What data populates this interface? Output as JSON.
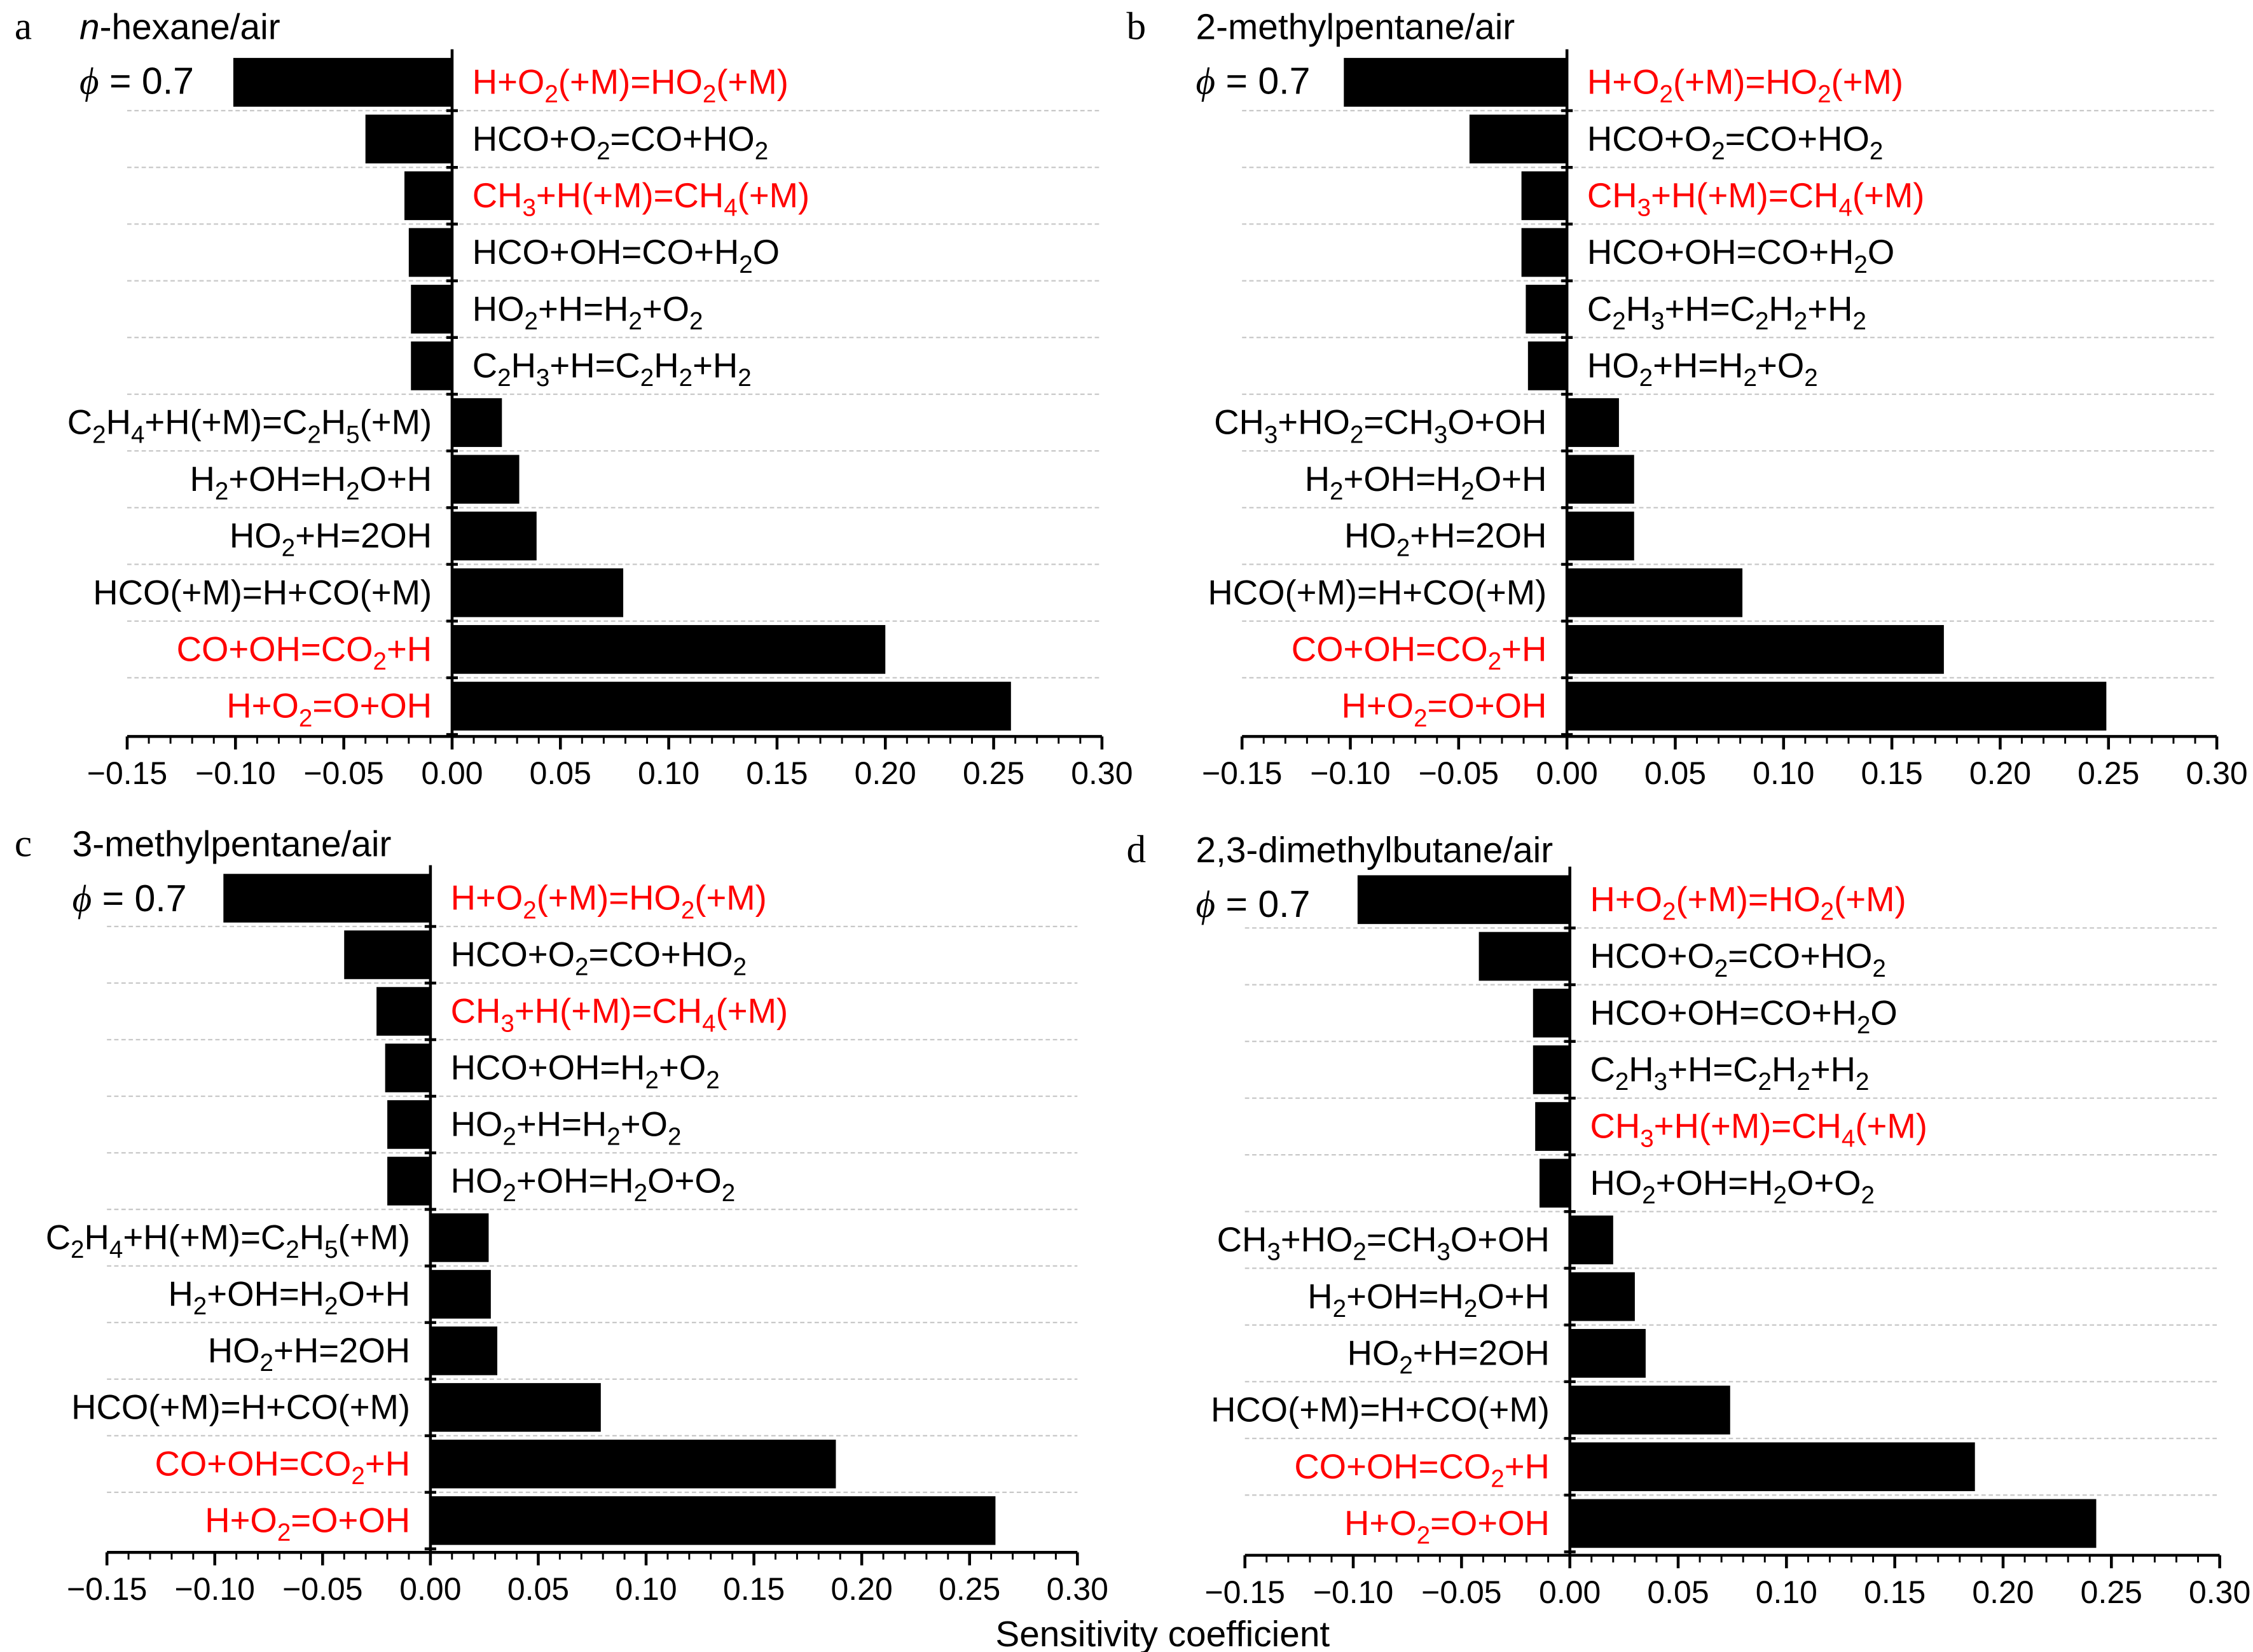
{
  "chart_data": [
    {
      "type": "bar",
      "orientation": "horizontal",
      "panel_letter": "a",
      "title_italic": "n",
      "title": "-hexane/air",
      "annotation_symbol": "ϕ",
      "annotation": " = 0.7",
      "xlim": [
        -0.15,
        0.3
      ],
      "xticks": [
        "−0.15",
        "−0.10",
        "−0.05",
        "0.00",
        "0.05",
        "0.10",
        "0.15",
        "0.20",
        "0.25",
        "0.30"
      ],
      "grid": "horizontal dashed between bars",
      "categories": [
        "H+O2(+M)=HO2(+M)",
        "HCO+O2=CO+HO2",
        "CH3+H(+M)=CH4(+M)",
        "HCO+OH=CO+H2O",
        "HO2+H=H2+O2",
        "C2H3+H=C2H2+H2",
        "C2H4+H(+M)=C2H5(+M)",
        "H2+OH=H2O+H",
        "HO2+H=2OH",
        "HCO(+M)=H+CO(+M)",
        "CO+OH=CO2+H",
        "H+O2=O+OH"
      ],
      "highlighted": [
        true,
        false,
        true,
        false,
        false,
        false,
        false,
        false,
        false,
        false,
        true,
        true
      ],
      "values": [
        -0.101,
        -0.04,
        -0.022,
        -0.02,
        -0.019,
        -0.019,
        0.023,
        0.031,
        0.039,
        0.079,
        0.2,
        0.258
      ]
    },
    {
      "type": "bar",
      "orientation": "horizontal",
      "panel_letter": "b",
      "title_italic": "",
      "title": "2-methylpentane/air",
      "annotation_symbol": "ϕ",
      "annotation": " = 0.7",
      "xlim": [
        -0.15,
        0.3
      ],
      "xticks": [
        "−0.15",
        "−0.10",
        "−0.05",
        "0.00",
        "0.05",
        "0.10",
        "0.15",
        "0.20",
        "0.25",
        "0.30"
      ],
      "grid": "horizontal dashed between bars",
      "categories": [
        "H+O2(+M)=HO2(+M)",
        "HCO+O2=CO+HO2",
        "CH3+H(+M)=CH4(+M)",
        "HCO+OH=CO+H2O",
        "C2H3+H=C2H2+H2",
        "HO2+H=H2+O2",
        "CH3+HO2=CH3O+OH",
        "H2+OH=H2O+H",
        "HO2+H=2OH",
        "HCO(+M)=H+CO(+M)",
        "CO+OH=CO2+H",
        "H+O2=O+OH"
      ],
      "highlighted": [
        true,
        false,
        true,
        false,
        false,
        false,
        false,
        false,
        false,
        false,
        true,
        true
      ],
      "values": [
        -0.103,
        -0.045,
        -0.021,
        -0.021,
        -0.019,
        -0.018,
        0.024,
        0.031,
        0.031,
        0.081,
        0.174,
        0.249
      ]
    },
    {
      "type": "bar",
      "orientation": "horizontal",
      "panel_letter": "c",
      "title_italic": "",
      "title": "3-methylpentane/air",
      "annotation_symbol": "ϕ",
      "annotation": " = 0.7",
      "xlim": [
        -0.15,
        0.3
      ],
      "xticks": [
        "−0.15",
        "−0.10",
        "−0.05",
        "0.00",
        "0.05",
        "0.10",
        "0.15",
        "0.20",
        "0.25",
        "0.30"
      ],
      "grid": "horizontal dashed between bars",
      "categories": [
        "H+O2(+M)=HO2(+M)",
        "HCO+O2=CO+HO2",
        "CH3+H(+M)=CH4(+M)",
        "HCO+OH=H2+O2",
        "HO2+H=H2+O2",
        "HO2+OH=H2O+O2",
        "C2H4+H(+M)=C2H5(+M)",
        "H2+OH=H2O+H",
        "HO2+H=2OH",
        "HCO(+M)=H+CO(+M)",
        "CO+OH=CO2+H",
        "H+O2=O+OH"
      ],
      "highlighted": [
        true,
        false,
        true,
        false,
        false,
        false,
        false,
        false,
        false,
        false,
        true,
        true
      ],
      "values": [
        -0.096,
        -0.04,
        -0.025,
        -0.021,
        -0.02,
        -0.02,
        0.027,
        0.028,
        0.031,
        0.079,
        0.188,
        0.262
      ]
    },
    {
      "type": "bar",
      "orientation": "horizontal",
      "panel_letter": "d",
      "title_italic": "",
      "title": "2,3-dimethylbutane/air",
      "annotation_symbol": "ϕ",
      "annotation": " = 0.7",
      "xlim": [
        -0.15,
        0.3
      ],
      "xticks": [
        "−0.15",
        "−0.10",
        "−0.05",
        "0.00",
        "0.05",
        "0.10",
        "0.15",
        "0.20",
        "0.25",
        "0.30"
      ],
      "grid": "horizontal dashed between bars",
      "categories": [
        "H+O2(+M)=HO2(+M)",
        "HCO+O2=CO+HO2",
        "HCO+OH=CO+H2O",
        "C2H3+H=C2H2+H2",
        "CH3+H(+M)=CH4(+M)",
        "HO2+OH=H2O+O2",
        "CH3+HO2=CH3O+OH",
        "H2+OH=H2O+H",
        "HO2+H=2OH",
        "HCO(+M)=H+CO(+M)",
        "CO+OH=CO2+H",
        "H+O2=O+OH"
      ],
      "highlighted": [
        true,
        false,
        false,
        false,
        true,
        false,
        false,
        false,
        false,
        false,
        true,
        true
      ],
      "values": [
        -0.098,
        -0.042,
        -0.017,
        -0.017,
        -0.016,
        -0.014,
        0.02,
        0.03,
        0.035,
        0.074,
        0.187,
        0.243
      ]
    }
  ],
  "xlabel": "Sensitivity coefficient",
  "colors": {
    "bar": "#000000",
    "highlight_label": "#ff0000",
    "label": "#000000",
    "grid": "#c8c8c8"
  }
}
